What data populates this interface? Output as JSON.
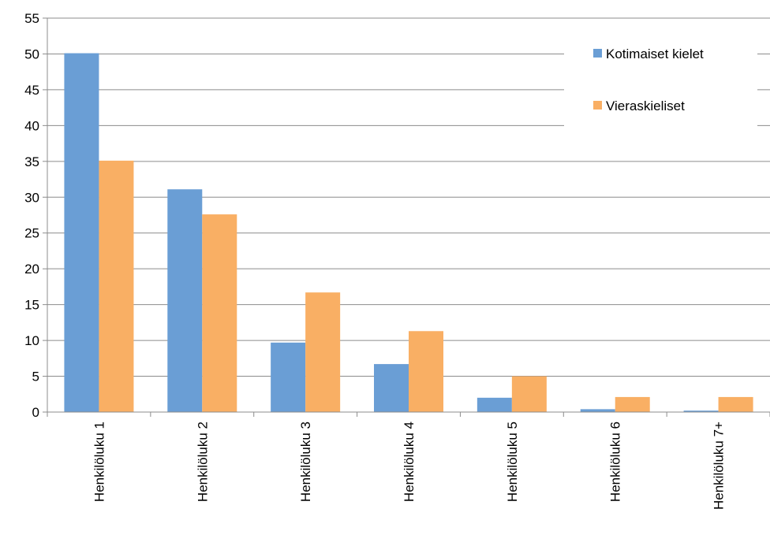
{
  "chart_data": {
    "type": "bar",
    "categories": [
      "Henkilöluku 1",
      "Henkilöluku 2",
      "Henkilöluku 3",
      "Henkilöluku 4",
      "Henkilöluku 5",
      "Henkilöluku 6",
      "Henkilöluku 7+"
    ],
    "series": [
      {
        "name": "Kotimaiset kielet",
        "color": "#6A9ED5",
        "values": [
          50.1,
          31.1,
          9.7,
          6.7,
          2.0,
          0.4,
          0.2
        ]
      },
      {
        "name": "Vieraskieliset",
        "color": "#F9AF64",
        "values": [
          35.1,
          27.6,
          16.7,
          11.3,
          5.0,
          2.1,
          2.1
        ]
      }
    ],
    "ylim": [
      0,
      55
    ],
    "yticks": [
      "0",
      "5",
      "10",
      "15",
      "20",
      "25",
      "30",
      "35",
      "40",
      "45",
      "50",
      "55"
    ],
    "grid": true,
    "legend_position": "top-right"
  }
}
